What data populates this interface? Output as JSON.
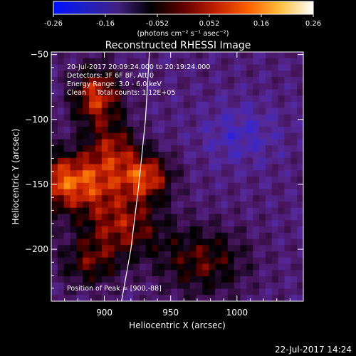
{
  "colorbar": {
    "ticks": [
      "-0.26",
      "-0.16",
      "-0.052",
      "0.052",
      "0.16",
      "0.26"
    ],
    "unit_label": "(photons cm⁻² s⁻¹ asec⁻²)",
    "stops": [
      "#0010ff",
      "#2020c0",
      "#402080",
      "#000000",
      "#600000",
      "#c02000",
      "#ff6000",
      "#ffc040",
      "#ffffff"
    ]
  },
  "chart_data": {
    "type": "heatmap",
    "title": "Reconstructed RHESSI Image",
    "xlabel": "Heliocentric X (arcsec)",
    "ylabel": "Heliocentric Y (arcsec)",
    "xlim": [
      860,
      1050
    ],
    "ylim": [
      -240,
      -48
    ],
    "xticks": [
      900,
      950,
      1000
    ],
    "yticks": [
      -50,
      -100,
      -150,
      -200
    ],
    "annotations": [
      "20-Jul-2017 20:09:24.000 to 20:19:24.000",
      "Detectors: 3F 6F 8F, Att 0",
      "Energy Range: 3.0 - 6.0 keV",
      "Clean     Total counts: 1.12E+05"
    ],
    "peak_label": "Position of Peak = [900,-88]",
    "peak_position": [
      900,
      -88
    ],
    "limb_curve": [
      [
        934,
        -48
      ],
      [
        931,
        -100
      ],
      [
        926,
        -150
      ],
      [
        920,
        -200
      ],
      [
        913,
        -240
      ]
    ],
    "value_range": [
      -0.26,
      0.26
    ]
  },
  "footer": {
    "timestamp": "22-Jul-2017 14:24"
  }
}
